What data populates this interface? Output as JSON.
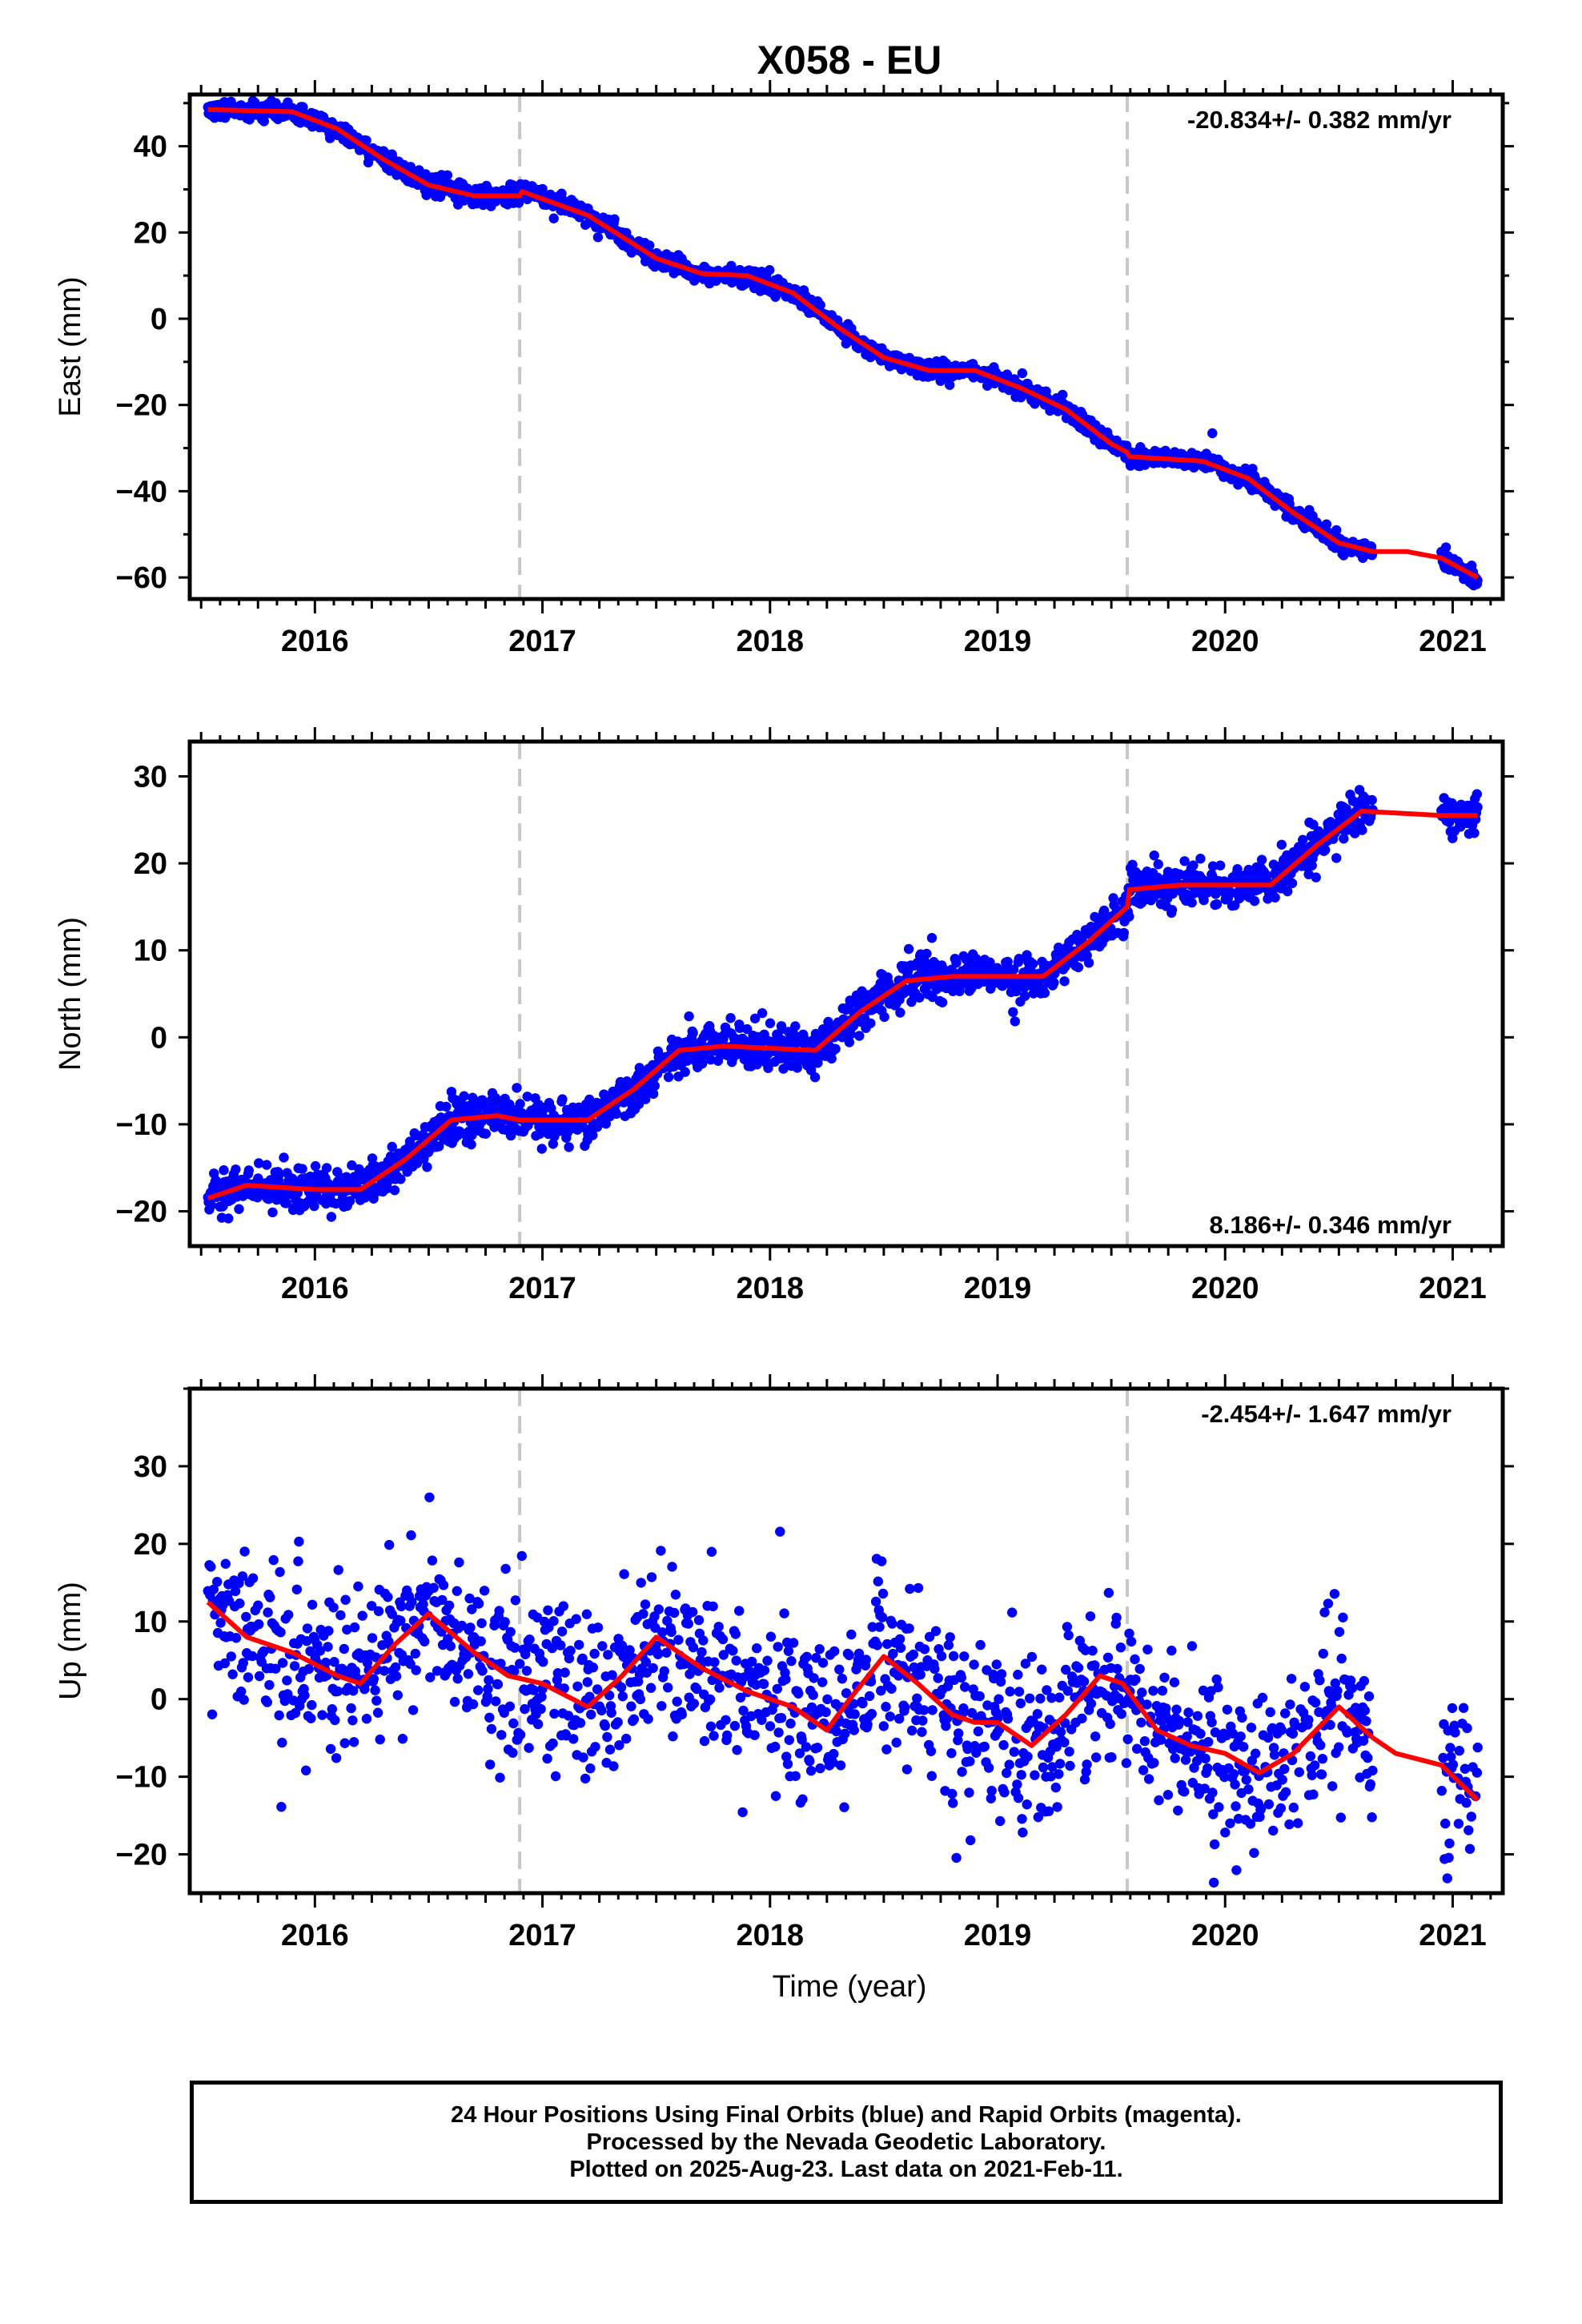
{
  "title": "X058 - EU",
  "xlabel": "Time (year)",
  "colors": {
    "final_orbits": "#0000ff",
    "model_fit": "#ff0000",
    "offset_line": "#c8c8c8",
    "axis": "#000000"
  },
  "chart_data": [
    {
      "type": "scatter",
      "panel": "east",
      "ylabel": "East (mm)",
      "rate_text": "-20.834+/- 0.382 mm/yr",
      "rate_position": "top-right",
      "xlim": [
        2015.45,
        2021.22
      ],
      "ylim": [
        -65,
        52
      ],
      "x_ticks": [
        2016,
        2017,
        2018,
        2019,
        2020,
        2021
      ],
      "y_ticks": [
        40,
        20,
        0,
        -20,
        -40,
        -60
      ],
      "offset_lines": [
        2016.9,
        2019.57
      ],
      "data_gap": [
        2020.65,
        2020.95
      ],
      "data_range": [
        2015.53,
        2021.11
      ],
      "series": [
        {
          "name": "Final Orbits",
          "marker": "dot",
          "color": "#0000ff",
          "scatter_sd": 1.0,
          "trend": [
            [
              2015.53,
              48.5
            ],
            [
              2015.9,
              48
            ],
            [
              2016.1,
              44
            ],
            [
              2016.3,
              37
            ],
            [
              2016.5,
              31
            ],
            [
              2016.7,
              28.5
            ],
            [
              2016.9,
              29
            ],
            [
              2016.91,
              30
            ],
            [
              2017.2,
              24
            ],
            [
              2017.5,
              14
            ],
            [
              2017.7,
              10.5
            ],
            [
              2017.9,
              10
            ],
            [
              2018.1,
              6
            ],
            [
              2018.3,
              -2
            ],
            [
              2018.5,
              -9
            ],
            [
              2018.7,
              -12
            ],
            [
              2018.9,
              -12
            ],
            [
              2019.1,
              -16
            ],
            [
              2019.3,
              -21
            ],
            [
              2019.5,
              -29
            ],
            [
              2019.57,
              -31
            ],
            [
              2019.58,
              -32
            ],
            [
              2019.9,
              -33
            ],
            [
              2020.1,
              -37
            ],
            [
              2020.3,
              -45
            ],
            [
              2020.5,
              -52
            ],
            [
              2020.65,
              -54
            ],
            [
              2020.95,
              -55
            ],
            [
              2021.11,
              -61
            ]
          ]
        },
        {
          "name": "Model",
          "marker": "line",
          "color": "#ff0000",
          "points": [
            [
              2015.53,
              48.5
            ],
            [
              2015.9,
              48
            ],
            [
              2016.1,
              44
            ],
            [
              2016.3,
              37
            ],
            [
              2016.5,
              31
            ],
            [
              2016.7,
              28.5
            ],
            [
              2016.9,
              28.5
            ],
            [
              2016.91,
              29.5
            ],
            [
              2017.2,
              24
            ],
            [
              2017.5,
              14
            ],
            [
              2017.7,
              10.5
            ],
            [
              2017.9,
              10
            ],
            [
              2018.1,
              6
            ],
            [
              2018.3,
              -2
            ],
            [
              2018.5,
              -9
            ],
            [
              2018.7,
              -12
            ],
            [
              2018.9,
              -12
            ],
            [
              2019.1,
              -16
            ],
            [
              2019.3,
              -21
            ],
            [
              2019.5,
              -29
            ],
            [
              2019.57,
              -31
            ],
            [
              2019.58,
              -32
            ],
            [
              2019.9,
              -33
            ],
            [
              2020.1,
              -37
            ],
            [
              2020.3,
              -45
            ],
            [
              2020.5,
              -52
            ],
            [
              2020.65,
              -54
            ],
            [
              2020.8,
              -54
            ],
            [
              2020.95,
              -55.5
            ],
            [
              2021.11,
              -60
            ]
          ]
        }
      ]
    },
    {
      "type": "scatter",
      "panel": "north",
      "ylabel": "North (mm)",
      "rate_text": "8.186+/- 0.346 mm/yr",
      "rate_position": "bottom-right",
      "xlim": [
        2015.45,
        2021.22
      ],
      "ylim": [
        -24,
        34
      ],
      "x_ticks": [
        2016,
        2017,
        2018,
        2019,
        2020,
        2021
      ],
      "y_ticks": [
        30,
        20,
        10,
        0,
        -10,
        -20
      ],
      "offset_lines": [
        2016.9,
        2019.57
      ],
      "data_gap": [
        2020.65,
        2020.95
      ],
      "data_range": [
        2015.53,
        2021.11
      ],
      "series": [
        {
          "name": "Final Orbits",
          "marker": "dot",
          "color": "#0000ff",
          "scatter_sd": 1.2,
          "trend": [
            [
              2015.53,
              -18.5
            ],
            [
              2015.7,
              -17
            ],
            [
              2016.0,
              -17.5
            ],
            [
              2016.2,
              -17.5
            ],
            [
              2016.4,
              -14
            ],
            [
              2016.6,
              -9.5
            ],
            [
              2016.8,
              -9
            ],
            [
              2016.9,
              -9.5
            ],
            [
              2017.2,
              -9.5
            ],
            [
              2017.4,
              -6
            ],
            [
              2017.6,
              -1.5
            ],
            [
              2017.8,
              -1
            ],
            [
              2018.2,
              -1.5
            ],
            [
              2018.4,
              3
            ],
            [
              2018.6,
              6.5
            ],
            [
              2018.8,
              7
            ],
            [
              2019.2,
              7
            ],
            [
              2019.4,
              11
            ],
            [
              2019.57,
              15
            ],
            [
              2019.58,
              17
            ],
            [
              2019.8,
              17.5
            ],
            [
              2020.2,
              17.5
            ],
            [
              2020.4,
              22
            ],
            [
              2020.6,
              26
            ],
            [
              2020.65,
              26
            ],
            [
              2020.95,
              25.5
            ],
            [
              2021.11,
              25.5
            ]
          ]
        },
        {
          "name": "Model",
          "marker": "line",
          "color": "#ff0000",
          "points": [
            [
              2015.53,
              -18.5
            ],
            [
              2015.7,
              -17
            ],
            [
              2016.0,
              -17.5
            ],
            [
              2016.2,
              -17.5
            ],
            [
              2016.4,
              -14
            ],
            [
              2016.6,
              -9.5
            ],
            [
              2016.8,
              -9
            ],
            [
              2016.9,
              -9.5
            ],
            [
              2017.2,
              -9.5
            ],
            [
              2017.4,
              -6
            ],
            [
              2017.6,
              -1.5
            ],
            [
              2017.8,
              -1
            ],
            [
              2018.2,
              -1.5
            ],
            [
              2018.4,
              3
            ],
            [
              2018.6,
              6.5
            ],
            [
              2018.8,
              7
            ],
            [
              2019.2,
              7
            ],
            [
              2019.4,
              11
            ],
            [
              2019.57,
              15
            ],
            [
              2019.58,
              17
            ],
            [
              2019.8,
              17.5
            ],
            [
              2020.2,
              17.5
            ],
            [
              2020.4,
              22
            ],
            [
              2020.6,
              26
            ],
            [
              2020.95,
              25.5
            ],
            [
              2021.11,
              25.5
            ]
          ]
        }
      ]
    },
    {
      "type": "scatter",
      "panel": "up",
      "ylabel": "Up (mm)",
      "rate_text": "-2.454+/- 1.647 mm/yr",
      "rate_position": "top-right",
      "xlim": [
        2015.45,
        2021.22
      ],
      "ylim": [
        -25,
        40
      ],
      "x_ticks": [
        2016,
        2017,
        2018,
        2019,
        2020,
        2021
      ],
      "y_ticks": [
        30,
        20,
        10,
        0,
        -10,
        -20
      ],
      "offset_lines": [
        2016.9,
        2019.57
      ],
      "data_gap": [
        2020.65,
        2020.95
      ],
      "data_range": [
        2015.53,
        2021.11
      ],
      "series": [
        {
          "name": "Final Orbits",
          "marker": "dot",
          "color": "#0000ff",
          "scatter_sd": 5.5,
          "trend": [
            [
              2015.53,
              12.5
            ],
            [
              2015.7,
              8
            ],
            [
              2015.9,
              6
            ],
            [
              2016.1,
              3
            ],
            [
              2016.2,
              2
            ],
            [
              2016.35,
              7
            ],
            [
              2016.5,
              11
            ],
            [
              2016.7,
              6
            ],
            [
              2016.85,
              3
            ],
            [
              2017.0,
              2
            ],
            [
              2017.2,
              -1
            ],
            [
              2017.35,
              3
            ],
            [
              2017.5,
              8
            ],
            [
              2017.7,
              4
            ],
            [
              2017.9,
              1
            ],
            [
              2018.1,
              -1
            ],
            [
              2018.25,
              -4
            ],
            [
              2018.35,
              0
            ],
            [
              2018.5,
              5.5
            ],
            [
              2018.65,
              2
            ],
            [
              2018.8,
              -2
            ],
            [
              2018.9,
              -3
            ],
            [
              2019.0,
              -3
            ],
            [
              2019.15,
              -6
            ],
            [
              2019.3,
              -2
            ],
            [
              2019.45,
              3
            ],
            [
              2019.55,
              2
            ],
            [
              2019.7,
              -4
            ],
            [
              2019.85,
              -6
            ],
            [
              2020.0,
              -7
            ],
            [
              2020.15,
              -9.5
            ],
            [
              2020.3,
              -7
            ],
            [
              2020.5,
              -1
            ],
            [
              2020.65,
              -5
            ],
            [
              2020.75,
              -7
            ],
            [
              2020.95,
              -8.5
            ],
            [
              2021.11,
              -13
            ]
          ]
        },
        {
          "name": "Model",
          "marker": "line",
          "color": "#ff0000",
          "points": [
            [
              2015.53,
              12.5
            ],
            [
              2015.7,
              8
            ],
            [
              2015.9,
              6
            ],
            [
              2016.1,
              3
            ],
            [
              2016.2,
              2
            ],
            [
              2016.35,
              7
            ],
            [
              2016.5,
              11
            ],
            [
              2016.7,
              6
            ],
            [
              2016.85,
              3
            ],
            [
              2017.0,
              2
            ],
            [
              2017.2,
              -1
            ],
            [
              2017.35,
              3
            ],
            [
              2017.5,
              8
            ],
            [
              2017.7,
              4
            ],
            [
              2017.9,
              1
            ],
            [
              2018.1,
              -1
            ],
            [
              2018.25,
              -4
            ],
            [
              2018.35,
              0
            ],
            [
              2018.5,
              5.5
            ],
            [
              2018.65,
              2
            ],
            [
              2018.8,
              -2
            ],
            [
              2018.9,
              -3
            ],
            [
              2019.0,
              -3
            ],
            [
              2019.15,
              -6
            ],
            [
              2019.3,
              -2
            ],
            [
              2019.45,
              3
            ],
            [
              2019.55,
              2
            ],
            [
              2019.7,
              -4
            ],
            [
              2019.85,
              -6
            ],
            [
              2020.0,
              -7
            ],
            [
              2020.15,
              -9.5
            ],
            [
              2020.3,
              -7
            ],
            [
              2020.5,
              -1
            ],
            [
              2020.65,
              -5
            ],
            [
              2020.75,
              -7
            ],
            [
              2020.95,
              -8.5
            ],
            [
              2021.11,
              -13
            ]
          ]
        }
      ]
    }
  ],
  "footer": {
    "line1": "24 Hour Positions Using Final Orbits (blue) and Rapid Orbits (magenta).",
    "line2": "Processed by the Nevada Geodetic Laboratory.",
    "line3": "Plotted on 2025-Aug-23. Last data on 2021-Feb-11."
  }
}
